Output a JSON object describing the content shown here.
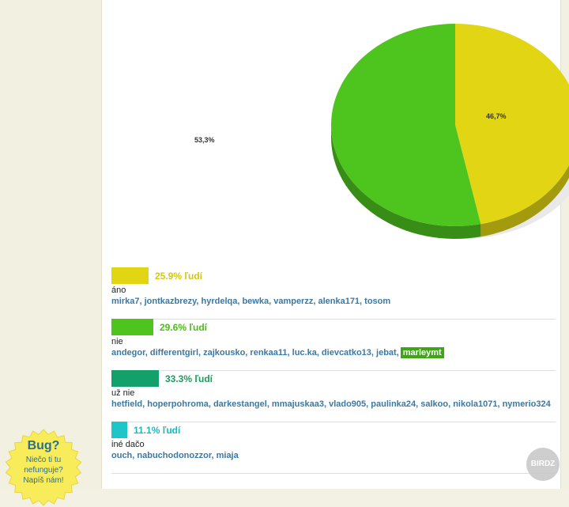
{
  "chart_data": {
    "type": "pie",
    "slices": [
      {
        "label": "46,7%",
        "value": 46.7,
        "color": "#e2d614"
      },
      {
        "label": "53,3%",
        "value": 53.3,
        "color": "#4ec41e"
      }
    ]
  },
  "poll": {
    "options": [
      {
        "percent": "25.9% ľudí",
        "percent_color": "#d6c80a",
        "bar_color": "#e2d614",
        "bar_fraction": 0.259,
        "name": "áno",
        "voters": "mirka7, jontkazbrezy, hyrdelqa, bewka, vamperzz, alenka171, tosom",
        "highlight": ""
      },
      {
        "percent": "29.6% ľudí",
        "percent_color": "#4bbf17",
        "bar_color": "#4ec41e",
        "bar_fraction": 0.296,
        "name": "nie",
        "voters": "andegor, differentgirl, zajkousko, renkaa11, luc.ka, dievcatko13, jebat,",
        "highlight": "marleymt"
      },
      {
        "percent": "33.3% ľudí",
        "percent_color": "#1d9a5e",
        "bar_color": "#14a06a",
        "bar_fraction": 0.333,
        "name": "už nie",
        "voters": "hetfield, hoperpohroma, darkestangel, mmajuskaa3, vlado905, paulinka24, salkoo, nikola1071, nymerio324",
        "highlight": ""
      },
      {
        "percent": "11.1% ľudí",
        "percent_color": "#17b8c0",
        "bar_color": "#1ec6c9",
        "bar_fraction": 0.111,
        "name": "iné dačo",
        "voters": "ouch, nabuchodonozzor, miaja",
        "highlight": ""
      }
    ]
  },
  "bug_badge": {
    "title": "Bug?",
    "line1": "Niečo ti tu",
    "line2": "nefunguje?",
    "line3": "Napíš nám!"
  },
  "watermark": "BIRDZ"
}
